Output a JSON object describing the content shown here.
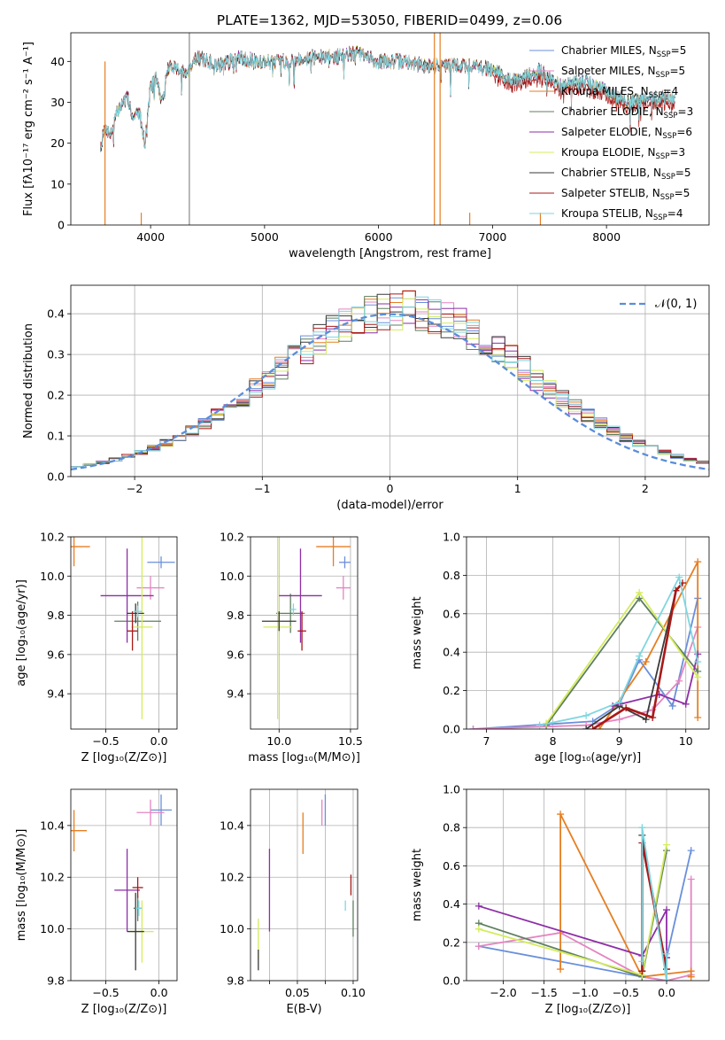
{
  "figure_title": "PLATE=1362, MJD=53050, FIBERID=0499, z=0.06",
  "model_colors": [
    "#6a8fdb",
    "#e584c1",
    "#e67e22",
    "#5f7f5f",
    "#8e2ea6",
    "#d4ec5c",
    "#3a3a3a",
    "#a81818",
    "#7fd6df"
  ],
  "chart_data": [
    {
      "id": "spectrum",
      "type": "line",
      "xlabel": "wavelength [Angstrom, rest frame]",
      "ylabel": "Flux [fλ10⁻¹⁷ erg cm⁻² s⁻¹ A⁻¹]",
      "xlim": [
        3300,
        8900
      ],
      "ylim": [
        0,
        47
      ],
      "xticks": [
        4000,
        5000,
        6000,
        7000,
        8000
      ],
      "yticks": [
        0,
        10,
        20,
        30,
        40
      ],
      "grid": false,
      "legend_position": "top-right",
      "legend": [
        "Chabrier MILES, N_SSP=5",
        "Salpeter MILES, N_SSP=5",
        "Kroupa MILES, N_SSP=4",
        "Chabrier ELODIE, N_SSP=3",
        "Salpeter ELODIE, N_SSP=6",
        "Kroupa ELODIE, N_SSP=3",
        "Chabrier STELIB, N_SSP=5",
        "Salpeter STELIB, N_SSP=5",
        "Kroupa STELIB, N_SSP=4"
      ],
      "x": [
        3560,
        3600,
        3650,
        3700,
        3750,
        3800,
        3850,
        3900,
        3950,
        4000,
        4050,
        4100,
        4150,
        4200,
        4300,
        4400,
        4500,
        4600,
        4700,
        4800,
        4900,
        5000,
        5200,
        5400,
        5600,
        5800,
        6000,
        6200,
        6400,
        6600,
        6800,
        7000,
        7200,
        7400,
        7600,
        7800,
        8000,
        8200,
        8400,
        8600
      ],
      "y": [
        19,
        24,
        22,
        27,
        30,
        31,
        26,
        28,
        20,
        34,
        36,
        30,
        38,
        39,
        37,
        41,
        40,
        39,
        40,
        41,
        40,
        40,
        40,
        41,
        41,
        42,
        40,
        40,
        39,
        39,
        39,
        38,
        35,
        38,
        34,
        35,
        33,
        30,
        31,
        31
      ]
    },
    {
      "id": "residuals",
      "type": "line",
      "xlabel": "(data-model)/error",
      "ylabel": "Normed distribution",
      "xlim": [
        -2.5,
        2.5
      ],
      "ylim": [
        0,
        0.47
      ],
      "xticks": [
        -2,
        -1,
        0,
        1,
        2
      ],
      "yticks": [
        0.0,
        0.1,
        0.2,
        0.3,
        0.4
      ],
      "grid": true,
      "legend_position": "top-right",
      "legend": [
        "𝒩(0, 1)"
      ],
      "normal_curve": {
        "mean": 0,
        "sigma": 1
      }
    },
    {
      "id": "age_vs_Z",
      "type": "scatter",
      "xlabel": "Z [log₁₀(Z/Z⊙)]",
      "ylabel": "age  [log₁₀(age/yr)]",
      "xlim": [
        -0.83,
        0.17
      ],
      "ylim": [
        9.22,
        10.2
      ],
      "xticks": [
        -0.5,
        0.0
      ],
      "yticks": [
        9.4,
        9.6,
        9.8,
        10.0,
        10.2
      ],
      "grid": true,
      "points": [
        {
          "x": 0.02,
          "y": 10.07,
          "xerr": 0.13,
          "yerr": 0.03
        },
        {
          "x": -0.08,
          "y": 9.94,
          "xerr": 0.13,
          "yerr": 0.06
        },
        {
          "x": -0.8,
          "y": 10.15,
          "xerr": 0.15,
          "yerr": 0.1
        },
        {
          "x": -0.2,
          "y": 9.77,
          "xerr": 0.22,
          "yerr": 0.1
        },
        {
          "x": -0.3,
          "y": 9.9,
          "xerr": 0.25,
          "yerr": 0.24
        },
        {
          "x": -0.16,
          "y": 9.74,
          "xerr": 0.1,
          "yerr": 0.47
        },
        {
          "x": -0.22,
          "y": 9.81,
          "xerr": 0.08,
          "yerr": 0.05
        },
        {
          "x": -0.25,
          "y": 9.72,
          "xerr": 0.05,
          "yerr": 0.1
        },
        {
          "x": -0.2,
          "y": 9.82,
          "xerr": 0.04,
          "yerr": 0.03
        }
      ]
    },
    {
      "id": "age_vs_mass",
      "type": "scatter",
      "xlabel": "mass [log₁₀(M/M⊙)]",
      "ylabel": "",
      "xlim": [
        9.8,
        10.55
      ],
      "ylim": [
        9.22,
        10.2
      ],
      "xticks": [
        10.0,
        10.5
      ],
      "yticks": [
        9.4,
        9.6,
        9.8,
        10.0,
        10.2
      ],
      "grid": true,
      "points": [
        {
          "x": 10.46,
          "y": 10.07,
          "xerr": 0.04,
          "yerr": 0.03
        },
        {
          "x": 10.45,
          "y": 9.94,
          "xerr": 0.05,
          "yerr": 0.06
        },
        {
          "x": 10.38,
          "y": 10.15,
          "xerr": 0.12,
          "yerr": 0.1
        },
        {
          "x": 10.08,
          "y": 9.81,
          "xerr": 0.1,
          "yerr": 0.1
        },
        {
          "x": 10.15,
          "y": 9.9,
          "xerr": 0.15,
          "yerr": 0.24
        },
        {
          "x": 9.99,
          "y": 9.74,
          "xerr": 0.1,
          "yerr": 0.47
        },
        {
          "x": 10.0,
          "y": 9.77,
          "xerr": 0.12,
          "yerr": 0.05
        },
        {
          "x": 10.16,
          "y": 9.72,
          "xerr": 0.03,
          "yerr": 0.1
        },
        {
          "x": 10.1,
          "y": 9.83,
          "xerr": 0.02,
          "yerr": 0.03
        }
      ]
    },
    {
      "id": "weight_vs_age",
      "type": "line",
      "xlabel": "age  [log₁₀(age/yr)]",
      "ylabel": "mass weight",
      "xlim": [
        6.7,
        10.35
      ],
      "ylim": [
        0,
        1
      ],
      "xticks": [
        7,
        8,
        9,
        10
      ],
      "yticks": [
        0.0,
        0.2,
        0.4,
        0.6,
        0.8,
        1.0
      ],
      "grid": true,
      "series": [
        {
          "x": [
            6.8,
            8.6,
            9.0,
            9.3,
            9.8,
            10.18
          ],
          "y": [
            0.0,
            0.04,
            0.13,
            0.36,
            0.12,
            0.68
          ]
        },
        {
          "x": [
            6.8,
            8.5,
            9.0,
            9.5,
            9.9,
            10.18
          ],
          "y": [
            0.0,
            0.02,
            0.05,
            0.1,
            0.25,
            0.53
          ]
        },
        {
          "x": [
            8.7,
            9.4,
            10.18,
            10.18
          ],
          "y": [
            0.0,
            0.35,
            0.87,
            0.06
          ]
        },
        {
          "x": [
            7.9,
            9.3,
            10.18
          ],
          "y": [
            0.02,
            0.68,
            0.3
          ]
        },
        {
          "x": [
            8.9,
            9.6,
            10.0,
            10.18
          ],
          "y": [
            0.12,
            0.18,
            0.13,
            0.39
          ]
        },
        {
          "x": [
            7.9,
            9.3,
            10.18
          ],
          "y": [
            0.03,
            0.71,
            0.27
          ]
        },
        {
          "x": [
            8.5,
            9.0,
            9.4,
            9.85
          ],
          "y": [
            0.0,
            0.12,
            0.05,
            0.72
          ]
        },
        {
          "x": [
            8.6,
            9.1,
            9.5,
            9.85,
            9.95
          ],
          "y": [
            0.0,
            0.11,
            0.06,
            0.72,
            0.76
          ]
        },
        {
          "x": [
            7.8,
            8.5,
            9.0,
            9.3,
            9.9,
            10.18
          ],
          "y": [
            0.02,
            0.07,
            0.14,
            0.38,
            0.79,
            0.35
          ]
        }
      ]
    },
    {
      "id": "mass_vs_Z",
      "type": "scatter",
      "xlabel": "Z [log₁₀(Z/Z⊙)]",
      "ylabel": "mass [log₁₀(M/M⊙)]",
      "xlim": [
        -0.83,
        0.17
      ],
      "ylim": [
        9.8,
        10.54
      ],
      "xticks": [
        -0.5,
        0.0
      ],
      "yticks": [
        9.8,
        10.0,
        10.2,
        10.4
      ],
      "grid": true,
      "points": [
        {
          "x": 0.02,
          "y": 10.46,
          "xerr": 0.1,
          "yerr": 0.06
        },
        {
          "x": -0.08,
          "y": 10.45,
          "xerr": 0.13,
          "yerr": 0.05
        },
        {
          "x": -0.8,
          "y": 10.38,
          "xerr": 0.12,
          "yerr": 0.08
        },
        {
          "x": -0.2,
          "y": 10.08,
          "xerr": 0.04,
          "yerr": 0.05
        },
        {
          "x": -0.3,
          "y": 10.15,
          "xerr": 0.12,
          "yerr": 0.16
        },
        {
          "x": -0.16,
          "y": 9.99,
          "xerr": 0.11,
          "yerr": 0.12
        },
        {
          "x": -0.22,
          "y": 9.99,
          "xerr": 0.08,
          "yerr": 0.15
        },
        {
          "x": -0.2,
          "y": 10.16,
          "xerr": 0.05,
          "yerr": 0.04
        },
        {
          "x": -0.19,
          "y": 10.08,
          "xerr": 0.03,
          "yerr": 0.03
        }
      ]
    },
    {
      "id": "mass_vs_ebv",
      "type": "scatter",
      "xlabel": "E(B-V)",
      "ylabel": "",
      "xlim": [
        0.008,
        0.104
      ],
      "ylim": [
        9.8,
        10.54
      ],
      "xticks": [
        0.025,
        0.05,
        0.075,
        0.1
      ],
      "yticks": [
        9.8,
        10.0,
        10.2,
        10.4
      ],
      "tick_labels": [
        "",
        "0.05",
        "",
        "0.10"
      ],
      "grid": true,
      "points": [
        {
          "x": 0.075,
          "y": 10.46,
          "xerr": 0,
          "yerr": 0.06
        },
        {
          "x": 0.072,
          "y": 10.45,
          "xerr": 0,
          "yerr": 0.05
        },
        {
          "x": 0.055,
          "y": 10.37,
          "xerr": 0,
          "yerr": 0.08
        },
        {
          "x": 0.1,
          "y": 10.04,
          "xerr": 0,
          "yerr": 0.07
        },
        {
          "x": 0.025,
          "y": 10.15,
          "xerr": 0,
          "yerr": 0.16
        },
        {
          "x": 0.015,
          "y": 9.96,
          "xerr": 0,
          "yerr": 0.08
        },
        {
          "x": 0.015,
          "y": 9.88,
          "xerr": 0,
          "yerr": 0.04
        },
        {
          "x": 0.098,
          "y": 10.17,
          "xerr": 0,
          "yerr": 0.04
        },
        {
          "x": 0.093,
          "y": 10.09,
          "xerr": 0,
          "yerr": 0.02
        }
      ]
    },
    {
      "id": "weight_vs_Z",
      "type": "line",
      "xlabel": "Z [log₁₀(Z/Z⊙)]",
      "ylabel": "mass weight",
      "xlim": [
        -2.45,
        0.52
      ],
      "ylim": [
        0,
        1
      ],
      "xticks": [
        -2.0,
        -1.5,
        -1.0,
        -0.5,
        0.0
      ],
      "yticks": [
        0.0,
        0.2,
        0.4,
        0.6,
        0.8,
        1.0
      ],
      "grid": true,
      "series": [
        {
          "x": [
            -2.3,
            -0.3,
            0.0,
            0.0,
            0.3
          ],
          "y": [
            0.18,
            0.02,
            0.0,
            0.12,
            0.68
          ]
        },
        {
          "x": [
            -2.3,
            -1.3,
            -0.3,
            0.0,
            0.3,
            0.3
          ],
          "y": [
            0.18,
            0.25,
            0.02,
            0.0,
            0.03,
            0.53
          ]
        },
        {
          "x": [
            -1.3,
            -1.3,
            -0.3,
            0.3,
            0.3
          ],
          "y": [
            0.06,
            0.87,
            0.02,
            0.05,
            0.02
          ]
        },
        {
          "x": [
            -2.3,
            -0.3,
            0.0
          ],
          "y": [
            0.3,
            0.02,
            0.68
          ]
        },
        {
          "x": [
            -2.3,
            -0.3,
            0.0,
            0.0
          ],
          "y": [
            0.39,
            0.13,
            0.37,
            0.12
          ]
        },
        {
          "x": [
            -2.3,
            -0.3,
            0.0
          ],
          "y": [
            0.27,
            0.03,
            0.71
          ]
        },
        {
          "x": [
            -0.3,
            -0.3,
            0.0
          ],
          "y": [
            0.05,
            0.76,
            0.06
          ]
        },
        {
          "x": [
            -0.3,
            -0.3,
            0.0
          ],
          "y": [
            0.05,
            0.72,
            0.06
          ]
        },
        {
          "x": [
            -0.3,
            -0.3,
            0.0,
            0.0
          ],
          "y": [
            0.1,
            0.8,
            0.0,
            0.14
          ]
        }
      ]
    }
  ]
}
